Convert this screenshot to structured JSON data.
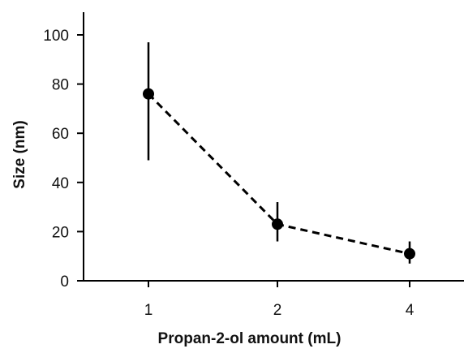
{
  "chart_data": {
    "type": "line",
    "title": "",
    "xlabel": "Propan-2-ol amount (mL)",
    "ylabel": "Size (nm)",
    "categories": [
      "1",
      "2",
      "4"
    ],
    "ylim": [
      0,
      100
    ],
    "yticks": [
      0,
      20,
      40,
      60,
      80,
      100
    ],
    "grid": false,
    "series": [
      {
        "values": [
          76,
          23,
          11
        ],
        "error_low": [
          49,
          16,
          7
        ],
        "error_high": [
          97,
          32,
          16
        ],
        "line_style": "dashed",
        "color": "#000000"
      }
    ]
  }
}
